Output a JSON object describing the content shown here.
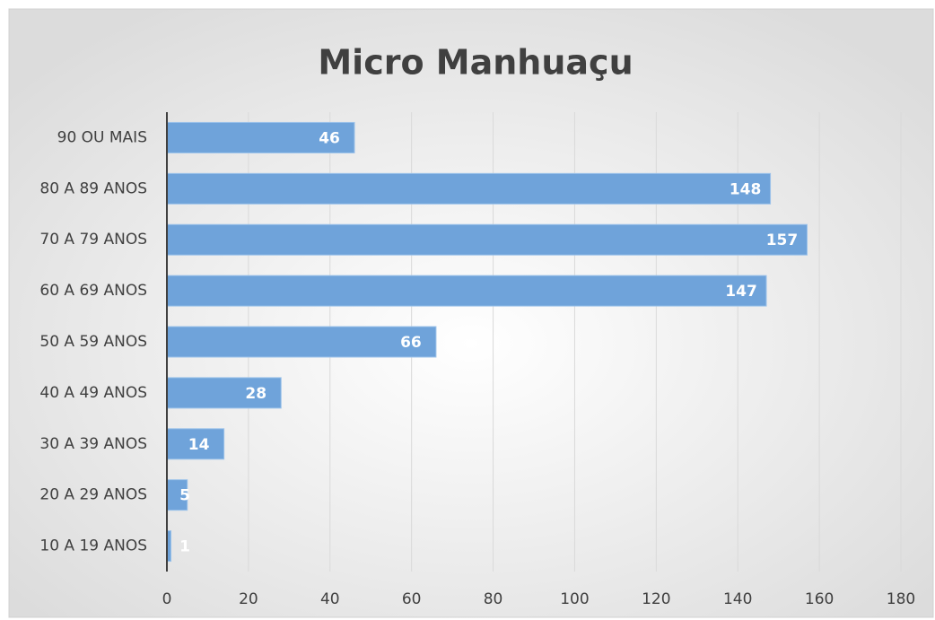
{
  "chart_data": {
    "type": "hbar",
    "title": "Micro Manhuaçu",
    "categories": [
      "90 OU MAIS",
      "80 A 89 ANOS",
      "70 A 79 ANOS",
      "60 A 69 ANOS",
      "50 A 59 ANOS",
      "40 A 49 ANOS",
      "30 A 39 ANOS",
      "20 A 29 ANOS",
      "10 A 19 ANOS"
    ],
    "values": [
      46,
      148,
      157,
      147,
      66,
      28,
      14,
      5,
      1
    ],
    "color": "#6fa3da",
    "xlim": [
      0,
      180
    ],
    "xticks": [
      0,
      20,
      40,
      60,
      80,
      100,
      120,
      140,
      160,
      180
    ],
    "grid": true
  }
}
